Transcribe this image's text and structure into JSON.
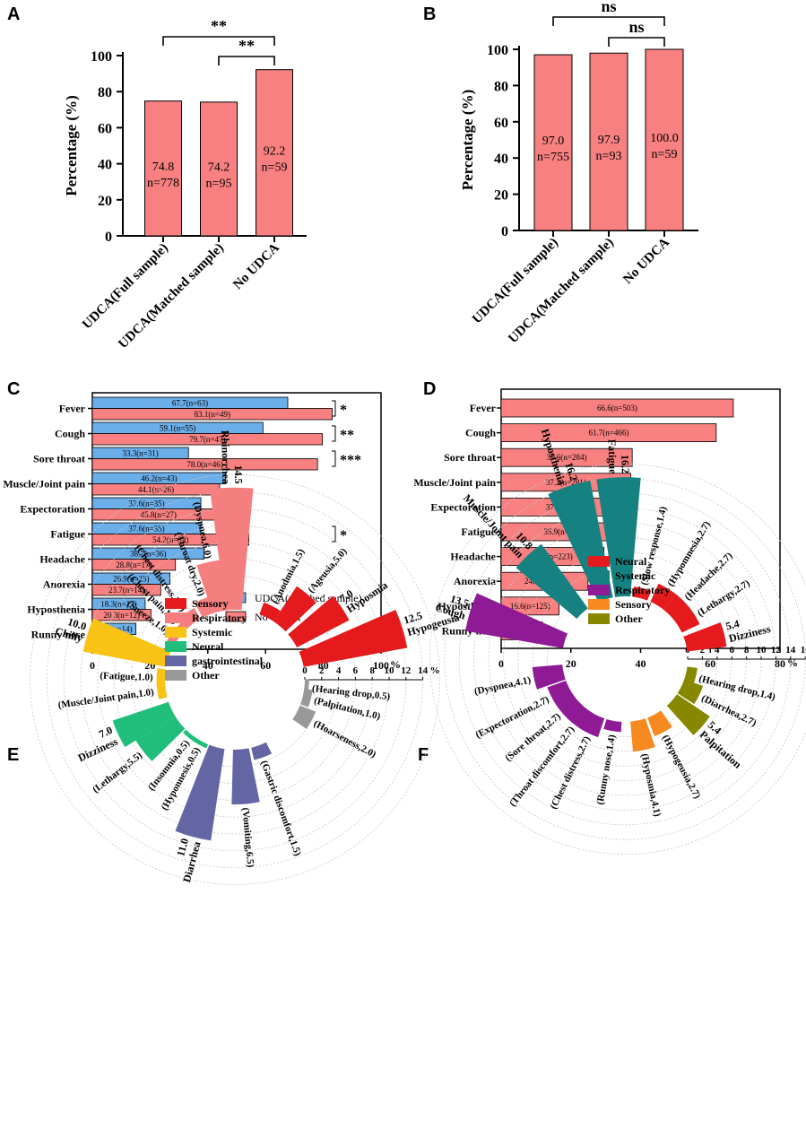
{
  "colors": {
    "red": "#f88080",
    "blue": "#6aaeea",
    "neural": "#e41a1c",
    "respiratory": "#f57f7f",
    "systemic": "#f9c315",
    "neural_green": "#1fbe7a",
    "gastro": "#6366a3",
    "other": "#999999",
    "systemic_teal": "#158281",
    "resp_purple": "#8e1a95",
    "sensory_orange": "#f6891f",
    "other_olive": "#888800"
  },
  "panel_labels": {
    "a": "A",
    "b": "B",
    "c": "C",
    "d": "D",
    "e": "E",
    "f": "F"
  },
  "chart_data": [
    {
      "id": "A",
      "type": "bar",
      "ylabel": "Percentage (%)",
      "ylim": [
        0,
        100
      ],
      "yticks": [
        0,
        20,
        40,
        60,
        80,
        100
      ],
      "categories": [
        "UDCA(Full sample)",
        "UDCA(Matched sample)",
        "No UDCA"
      ],
      "values": [
        74.8,
        74.2,
        92.2
      ],
      "value_labels": [
        "74.8",
        "74.2",
        "92.2"
      ],
      "n_labels": [
        "n=778",
        "n=95",
        "n=59"
      ],
      "significance": [
        "**",
        "**"
      ]
    },
    {
      "id": "B",
      "type": "bar",
      "ylabel": "Percentage (%)",
      "ylim": [
        0,
        100
      ],
      "yticks": [
        0,
        20,
        40,
        60,
        80,
        100
      ],
      "categories": [
        "UDCA(Full sample)",
        "UDCA(Matched sample)",
        "No UDCA"
      ],
      "values": [
        97.0,
        97.9,
        100.0
      ],
      "value_labels": [
        "97.0",
        "97.9",
        "100.0"
      ],
      "n_labels": [
        "n=755",
        "n=93",
        "n=59"
      ],
      "significance": [
        "ns",
        "ns"
      ]
    },
    {
      "id": "C",
      "type": "bar",
      "orientation": "horizontal",
      "xlim": [
        0,
        100
      ],
      "xticks": [
        0,
        20,
        40,
        60,
        80,
        100
      ],
      "unit": "%",
      "categories": [
        "Fever",
        "Cough",
        "Sore throat",
        "Muscle/Joint pain",
        "Expectoration",
        "Fatigue",
        "Headache",
        "Anorexia",
        "Hyposthenia",
        "Runny nose"
      ],
      "series": [
        {
          "name": "UDCA(matched sample)",
          "values": [
            67.7,
            59.1,
            33.3,
            46.2,
            37.6,
            37.6,
            38.7,
            26.9,
            18.3,
            15.1
          ],
          "labels": [
            "67.7(n=63)",
            "59.1(n=55)",
            "33.3(n=31)",
            "46.2(n=43)",
            "37.6(n=35)",
            "37.6(n=35)",
            "38.7(n=36)",
            "26.9(n=25)",
            "18.3(n=17)",
            "15.1(n=14)"
          ]
        },
        {
          "name": "No UDCA",
          "values": [
            83.1,
            79.7,
            78.0,
            44.1,
            45.8,
            54.2,
            28.8,
            23.7,
            20.3,
            13.6
          ],
          "labels": [
            "83.1(n=49)",
            "79.7(n=47)",
            "78.0(n=46)",
            "44.1(n=26)",
            "45.8(n=27)",
            "54.2(n=32)",
            "28.8(n=17)",
            "23.7(n=14)",
            "20.3(n=12)",
            "13.6(n=8)"
          ]
        }
      ],
      "significance": [
        "*",
        "**",
        "***",
        "",
        "",
        "*",
        "",
        "",
        "",
        ""
      ]
    },
    {
      "id": "D",
      "type": "bar",
      "orientation": "horizontal",
      "xlim": [
        0,
        80
      ],
      "xticks": [
        0,
        20,
        40,
        60,
        80
      ],
      "unit": "%",
      "categories": [
        "Fever",
        "Cough",
        "Sore throat",
        "Muscle/Joint pain",
        "Expectoration",
        "Fatigue",
        "Headache",
        "Anorexia",
        "Hyposthenia",
        "Runny nose"
      ],
      "values": [
        66.6,
        61.7,
        37.6,
        37.2,
        37.2,
        35.9,
        29.5,
        24.9,
        16.6,
        11.8
      ],
      "labels": [
        "66.6(n=503)",
        "61.7(n=466)",
        "37.6(n=284)",
        "37.2(n=281)",
        "37.2(n=281)",
        "35.9(n=271)",
        "29.5(n=223)",
        "24.9(n=188)",
        "16.6(n=125)",
        "11.8(n=89)"
      ]
    },
    {
      "id": "E",
      "type": "radial_bar",
      "unit": "%",
      "rmax": 14,
      "rticks": [
        0,
        2,
        4,
        6,
        8,
        10,
        12,
        14
      ],
      "legend": [
        {
          "name": "Sensory",
          "key": "neural"
        },
        {
          "name": "Respiratory",
          "key": "respiratory"
        },
        {
          "name": "Systemic",
          "key": "systemic"
        },
        {
          "name": "Neural",
          "key": "neural_green"
        },
        {
          "name": "gastrointestinal",
          "key": "gastro"
        },
        {
          "name": "Other",
          "key": "other"
        }
      ],
      "items": [
        {
          "name": "Anodmia",
          "value": 1.5,
          "label": "(Anodmia,1.5)",
          "group": "neural"
        },
        {
          "name": "Ageusia",
          "value": 5.0,
          "label": "(Ageusia,5.0)",
          "group": "neural"
        },
        {
          "name": "Hyposmia",
          "value": 7.0,
          "label": "Hyposmia",
          "value_label": "7.0",
          "group": "neural"
        },
        {
          "name": "Hypogeusia",
          "value": 12.5,
          "label": "Hypogeusia",
          "value_label": "12.5",
          "group": "neural"
        },
        {
          "name": "Hearing drop",
          "value": 0.5,
          "label": "(Hearing drop,0.5)",
          "group": "other"
        },
        {
          "name": "Palpitation",
          "value": 1.0,
          "label": "(Palpitation,1.0)",
          "group": "other"
        },
        {
          "name": "Hoarseness",
          "value": 2.0,
          "label": "(Hoarseness,2.0)",
          "group": "other"
        },
        {
          "name": "Gastric discomfort",
          "value": 1.5,
          "label": "(Gastric discomfort,1.5)",
          "group": "gastro"
        },
        {
          "name": "Vomiting",
          "value": 6.5,
          "label": "(Vomiting,6.5)",
          "group": "gastro"
        },
        {
          "name": "Diarrhea",
          "value": 11.0,
          "label": "Diarrhea",
          "value_label": "11.0",
          "group": "gastro"
        },
        {
          "name": "Hyponnesis",
          "value": 0.5,
          "label": "(Hyponnesis,0.5)",
          "group": "neural_green"
        },
        {
          "name": "Insomnia",
          "value": 0.5,
          "label": "(Insomnia,0.5)",
          "group": "neural_green"
        },
        {
          "name": "Lethargy",
          "value": 5.5,
          "label": "(Lethargy,5.5)",
          "group": "neural_green"
        },
        {
          "name": "Dizziness",
          "value": 7.0,
          "label": "Dizziness",
          "value_label": "7.0",
          "group": "neural_green"
        },
        {
          "name": "Muscle/Joint pain",
          "value": 1.0,
          "label": "(Muscle/Joint pain,1.0)",
          "group": "systemic"
        },
        {
          "name": "Fatigue",
          "value": 1.0,
          "label": "(Fatigue,1.0)",
          "group": "systemic"
        },
        {
          "name": "Chilly",
          "value": 10.0,
          "label": "Chilly",
          "value_label": "10.0",
          "group": "systemic"
        },
        {
          "name": "Sneeze",
          "value": 1.0,
          "label": "(Sneeze,1.0)",
          "group": "respiratory"
        },
        {
          "name": "Chest pain",
          "value": 1.0,
          "label": "(Chest pain,1.0)",
          "group": "respiratory"
        },
        {
          "name": "Chest distress",
          "value": 1.5,
          "label": "(Chest distress,1.5)",
          "group": "respiratory"
        },
        {
          "name": "Throat dry",
          "value": 2.0,
          "label": "(Throat dry,2.0)",
          "group": "respiratory"
        },
        {
          "name": "Dyspnea",
          "value": 6.0,
          "label": "(Dyspnea,6.0)",
          "group": "respiratory"
        },
        {
          "name": "Rhinorrhea",
          "value": 14.5,
          "label": "Rhinorrhea",
          "value_label": "14.5",
          "group": "respiratory"
        }
      ]
    },
    {
      "id": "F",
      "type": "radial_bar",
      "unit": "%",
      "rmax": 16,
      "rticks": [
        0,
        2,
        4,
        6,
        8,
        10,
        12,
        14,
        16
      ],
      "legend": [
        {
          "name": "Neural",
          "key": "neural"
        },
        {
          "name": "Systemic",
          "key": "systemic_teal"
        },
        {
          "name": "Respiratory",
          "key": "resp_purple"
        },
        {
          "name": "Sensory",
          "key": "sensory_orange"
        },
        {
          "name": "Other",
          "key": "other_olive"
        }
      ],
      "items": [
        {
          "name": "Slow response",
          "value": 1.4,
          "label": "(Slow response,1.4)",
          "group": "neural"
        },
        {
          "name": "Hypomnesia",
          "value": 2.7,
          "label": "(Hypomnesia,2.7)",
          "group": "neural"
        },
        {
          "name": "Headache",
          "value": 2.7,
          "label": "(Headache,2.7)",
          "group": "neural"
        },
        {
          "name": "Lethargy",
          "value": 2.7,
          "label": "(Lethargy,2.7)",
          "group": "neural"
        },
        {
          "name": "Dizziness",
          "value": 5.4,
          "label": "Dizziness",
          "value_label": "5.4",
          "group": "neural"
        },
        {
          "name": "Hearing drop",
          "value": 1.4,
          "label": "(Hearing drop,1.4)",
          "group": "other_olive"
        },
        {
          "name": "Diarrhea",
          "value": 2.7,
          "label": "(Diarrhea,2.7)",
          "group": "other_olive"
        },
        {
          "name": "Palpitation",
          "value": 5.4,
          "label": "Palpitation",
          "value_label": "5.4",
          "group": "other_olive"
        },
        {
          "name": "Hypogeusia",
          "value": 2.7,
          "label": "(Hypogeusia,2.7)",
          "group": "sensory_orange"
        },
        {
          "name": "Hyposmia",
          "value": 4.1,
          "label": "(Hyposmia,4.1)",
          "group": "sensory_orange"
        },
        {
          "name": "Runny nose",
          "value": 1.4,
          "label": "(Runny nose,1.4)",
          "group": "resp_purple"
        },
        {
          "name": "Chest distress",
          "value": 2.7,
          "label": "(Chest distress,2.7)",
          "group": "resp_purple"
        },
        {
          "name": "Throat discomfort",
          "value": 2.7,
          "label": "(Throat discomfort,2.7)",
          "group": "resp_purple"
        },
        {
          "name": "Sore throat",
          "value": 2.7,
          "label": "(Sore throat,2.7)",
          "group": "resp_purple"
        },
        {
          "name": "Expectoration",
          "value": 2.7,
          "label": "(Expectoration,2.7)",
          "group": "resp_purple"
        },
        {
          "name": "Dyspnea",
          "value": 4.1,
          "label": "(Dyspnea,4.1)",
          "group": "resp_purple"
        },
        {
          "name": "Cough",
          "value": 13.5,
          "label": "Cough",
          "value_label": "13.5",
          "group": "resp_purple"
        },
        {
          "name": "Muscle/Joint pain",
          "value": 10.8,
          "label": "Muscle/Joint pain",
          "value_label": "10.8",
          "group": "systemic_teal"
        },
        {
          "name": "Hyposthenia",
          "value": 16.2,
          "label": "Hyposthenia",
          "value_label": "16.2",
          "group": "systemic_teal"
        },
        {
          "name": "Fatigue",
          "value": 16.2,
          "label": "Fatigue",
          "value_label": "16.2",
          "group": "systemic_teal"
        }
      ]
    }
  ]
}
